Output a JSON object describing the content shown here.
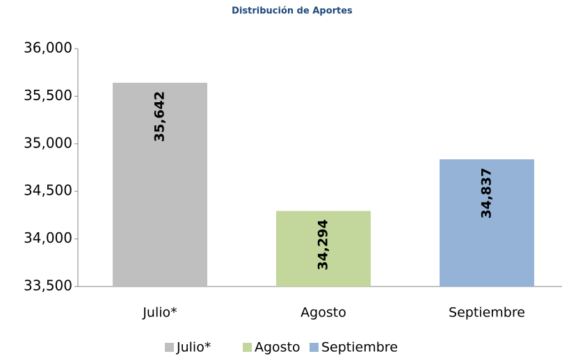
{
  "chart_data": {
    "type": "bar",
    "title": "Distribución de Aportes",
    "categories": [
      "Julio*",
      "Agosto",
      "Septiembre"
    ],
    "values": [
      35642,
      34294,
      34837
    ],
    "value_labels": [
      "35,642",
      "34,294",
      "34,837"
    ],
    "colors": [
      "#bfbfbf",
      "#c3d69b",
      "#95b3d7"
    ],
    "ylim": [
      33500,
      36000
    ],
    "yticks": [
      {
        "value": 33500,
        "label": "33,500"
      },
      {
        "value": 34000,
        "label": "34,000"
      },
      {
        "value": 34500,
        "label": "34,500"
      },
      {
        "value": 35000,
        "label": "35,000"
      },
      {
        "value": 35500,
        "label": "35,500"
      },
      {
        "value": 36000,
        "label": "36,000"
      }
    ],
    "grid": false,
    "legend": "bottom"
  }
}
